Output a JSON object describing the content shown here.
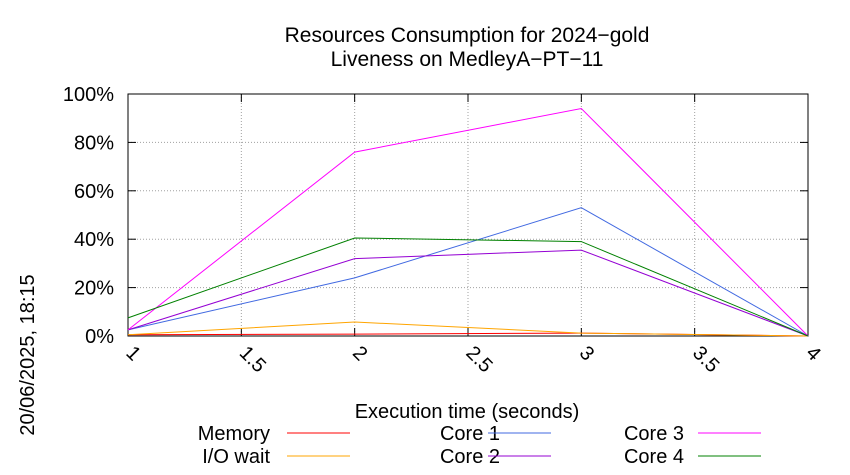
{
  "side_label": "20/06/2025, 18:15",
  "chart_data": {
    "type": "line",
    "title": "Resources Consumption for 2024−gold",
    "subtitle": "Liveness on MedleyA−PT−11",
    "xlabel": "Execution time (seconds)",
    "ylabel": "",
    "xlim": [
      1,
      4
    ],
    "ylim": [
      0,
      100
    ],
    "xticks": [
      "1",
      "1.5",
      "2",
      "2.5",
      "3",
      "3.5",
      "4"
    ],
    "yticks": [
      "0%",
      "20%",
      "40%",
      "60%",
      "80%",
      "100%"
    ],
    "grid": true,
    "legend_position": "bottom",
    "x": [
      1,
      2,
      3,
      4
    ],
    "series": [
      {
        "name": "Memory",
        "color": "#ff0000",
        "values": [
          0.5,
          0.8,
          1.2,
          0
        ]
      },
      {
        "name": "I/O wait",
        "color": "#ffa500",
        "values": [
          0.5,
          5.8,
          1.2,
          0
        ]
      },
      {
        "name": "Core 1",
        "color": "#4169e1",
        "values": [
          2.5,
          24,
          53,
          0
        ]
      },
      {
        "name": "Core 2",
        "color": "#9400d3",
        "values": [
          2.5,
          32,
          35.5,
          0
        ]
      },
      {
        "name": "Core 3",
        "color": "#ff00ff",
        "values": [
          2.5,
          76,
          94,
          0
        ]
      },
      {
        "name": "Core 4",
        "color": "#008000",
        "values": [
          7.5,
          40.5,
          39,
          0
        ]
      }
    ]
  }
}
